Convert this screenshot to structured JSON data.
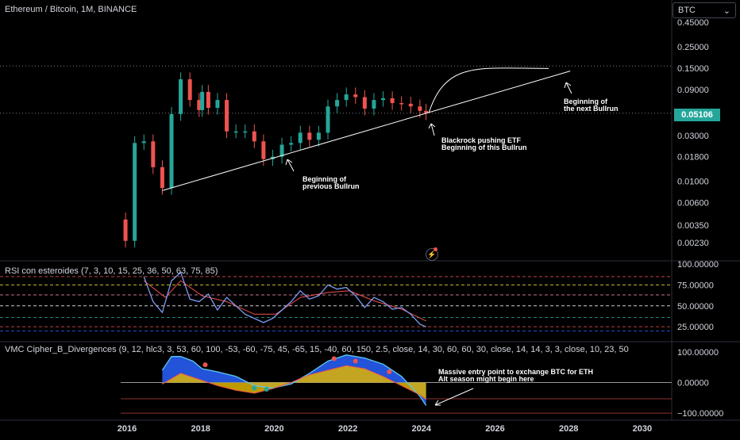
{
  "header": {
    "symbol_title": "Ethereum / Bitcoin, 1M, BINANCE",
    "currency_button": "BTC",
    "currency_chevron": "⌄"
  },
  "last_price": "0.05106",
  "colors": {
    "up": "#26a69a",
    "down": "#ef5350",
    "background": "#000000",
    "grid": "#1e222d",
    "text": "#d1d4dc",
    "rsi_line": "#7e9cf3",
    "rsi_signal": "#ef5350",
    "wave": "#5bc8f0",
    "money_flow": "#2962ff"
  },
  "panes": {
    "rsi_title": "RSI con esteroides (7, 3, 10, 15, 25, 36, 50, 63, 75, 85)",
    "vmc_title": "VMC Cipher_B_Divergences (9, 12, hlc3, 3, 53, 60, 100, -53, -60, -75, 45, -65, 15, -40, 60, 150, 2.5, close, 14, 30, 60, 60, 30, close, 14, 14, 3, 3, close, 10, 23, 50"
  },
  "annotations": {
    "prev_1": "Beginning of",
    "prev_2": "previous Bullrun",
    "etf_1": "Blackrock pushing ETF",
    "etf_2": "Beginning of this Bullrun",
    "next_1": "Beginning of",
    "next_2": "the next Bullrun",
    "entry_1": "Massive entry point to exchange BTC for ETH",
    "entry_2": "Alt season might begin here"
  },
  "chart_data": [
    {
      "type": "candlestick",
      "title": "Ethereum / Bitcoin, 1M, BINANCE",
      "scale": "log",
      "y_tick_labels": [
        "0.45000",
        "0.25000",
        "0.15000",
        "0.09000",
        "0.05106",
        "0.03000",
        "0.01800",
        "0.01000",
        "0.00600",
        "0.00350",
        "0.00230"
      ],
      "x_tick_labels": [
        "2016",
        "2018",
        "2020",
        "2022",
        "2024",
        "2026",
        "2028",
        "2030"
      ],
      "series_close": [
        {
          "date": "2015-09",
          "close": 0.004
        },
        {
          "date": "2015-12",
          "close": 0.0024
        },
        {
          "date": "2016-03",
          "close": 0.025
        },
        {
          "date": "2016-06",
          "close": 0.026
        },
        {
          "date": "2016-09",
          "close": 0.014
        },
        {
          "date": "2016-12",
          "close": 0.0085
        },
        {
          "date": "2017-03",
          "close": 0.05
        },
        {
          "date": "2017-06",
          "close": 0.115
        },
        {
          "date": "2017-09",
          "close": 0.07
        },
        {
          "date": "2017-12",
          "close": 0.055
        },
        {
          "date": "2018-01",
          "close": 0.085
        },
        {
          "date": "2018-03",
          "close": 0.058
        },
        {
          "date": "2018-06",
          "close": 0.07
        },
        {
          "date": "2018-09",
          "close": 0.033
        },
        {
          "date": "2018-12",
          "close": 0.033
        },
        {
          "date": "2019-03",
          "close": 0.033
        },
        {
          "date": "2019-06",
          "close": 0.026
        },
        {
          "date": "2019-09",
          "close": 0.017
        },
        {
          "date": "2019-12",
          "close": 0.018
        },
        {
          "date": "2020-03",
          "close": 0.024
        },
        {
          "date": "2020-06",
          "close": 0.025
        },
        {
          "date": "2020-09",
          "close": 0.032
        },
        {
          "date": "2020-12",
          "close": 0.027
        },
        {
          "date": "2021-03",
          "close": 0.032
        },
        {
          "date": "2021-06",
          "close": 0.06
        },
        {
          "date": "2021-09",
          "close": 0.07
        },
        {
          "date": "2021-12",
          "close": 0.08
        },
        {
          "date": "2022-03",
          "close": 0.075
        },
        {
          "date": "2022-06",
          "close": 0.057
        },
        {
          "date": "2022-09",
          "close": 0.07
        },
        {
          "date": "2022-12",
          "close": 0.073
        },
        {
          "date": "2023-03",
          "close": 0.065
        },
        {
          "date": "2023-06",
          "close": 0.064
        },
        {
          "date": "2023-09",
          "close": 0.06
        },
        {
          "date": "2023-12",
          "close": 0.054
        },
        {
          "date": "2024-02",
          "close": 0.051
        }
      ],
      "trendline": {
        "from": {
          "date": "2016-12",
          "value": 0.008
        },
        "to": {
          "date": "2028-01",
          "value": 0.14
        }
      },
      "curve": {
        "from": {
          "date": "2024-06",
          "value": 0.06
        },
        "to": {
          "date": "2027-06",
          "value": 0.149
        }
      },
      "horizontal_levels": [
        0.158,
        0.05106
      ],
      "last_price": 0.05106
    },
    {
      "type": "line",
      "title": "RSI con esteroides (7, 3, 10, 15, 25, 36, 50, 63, 75, 85)",
      "y_tick_labels": [
        "100.00000",
        "75.00000",
        "50.00000",
        "25.00000"
      ],
      "ylim": [
        10,
        100
      ],
      "levels": [
        85,
        75,
        63,
        50,
        36,
        25
      ],
      "series": [
        {
          "values": [
            {
              "date": "2016-06",
              "value": 85
            },
            {
              "date": "2016-09",
              "value": 55
            },
            {
              "date": "2016-12",
              "value": 42
            },
            {
              "date": "2017-03",
              "value": 80
            },
            {
              "date": "2017-06",
              "value": 90
            },
            {
              "date": "2017-09",
              "value": 58
            },
            {
              "date": "2017-12",
              "value": 55
            },
            {
              "date": "2018-03",
              "value": 64
            },
            {
              "date": "2018-06",
              "value": 45
            },
            {
              "date": "2018-09",
              "value": 60
            },
            {
              "date": "2018-12",
              "value": 50
            },
            {
              "date": "2019-03",
              "value": 40
            },
            {
              "date": "2019-06",
              "value": 35
            },
            {
              "date": "2019-09",
              "value": 30
            },
            {
              "date": "2019-12",
              "value": 35
            },
            {
              "date": "2020-03",
              "value": 45
            },
            {
              "date": "2020-06",
              "value": 55
            },
            {
              "date": "2020-09",
              "value": 68
            },
            {
              "date": "2020-12",
              "value": 58
            },
            {
              "date": "2021-03",
              "value": 62
            },
            {
              "date": "2021-06",
              "value": 75
            },
            {
              "date": "2021-09",
              "value": 70
            },
            {
              "date": "2021-12",
              "value": 72
            },
            {
              "date": "2022-03",
              "value": 62
            },
            {
              "date": "2022-06",
              "value": 48
            },
            {
              "date": "2022-09",
              "value": 60
            },
            {
              "date": "2022-12",
              "value": 55
            },
            {
              "date": "2023-03",
              "value": 46
            },
            {
              "date": "2023-06",
              "value": 48
            },
            {
              "date": "2023-09",
              "value": 40
            },
            {
              "date": "2023-12",
              "value": 28
            },
            {
              "date": "2024-02",
              "value": 25
            }
          ]
        },
        {
          "values": [
            {
              "date": "2016-06",
              "value": 80
            },
            {
              "date": "2017-01",
              "value": 60
            },
            {
              "date": "2017-06",
              "value": 80
            },
            {
              "date": "2018-01",
              "value": 62
            },
            {
              "date": "2018-09",
              "value": 55
            },
            {
              "date": "2019-06",
              "value": 40
            },
            {
              "date": "2020-01",
              "value": 40
            },
            {
              "date": "2020-09",
              "value": 60
            },
            {
              "date": "2021-06",
              "value": 66
            },
            {
              "date": "2022-01",
              "value": 68
            },
            {
              "date": "2022-09",
              "value": 56
            },
            {
              "date": "2023-06",
              "value": 46
            },
            {
              "date": "2024-02",
              "value": 32
            }
          ]
        }
      ]
    },
    {
      "type": "area",
      "title": "VMC Cipher_B_Divergences (9, 12, hlc3, 3, 53, 60, 100, -53, -60, -75, 45, -65, 15, -40, 60, 150, 2.5, close, 14, 30, 60, 60, 30, close, 14, 14, 3, 3, close, 10, 23, 50",
      "y_tick_labels": [
        "100.00000",
        "0.00000",
        "−100.00000"
      ],
      "ylim": [
        -110,
        110
      ],
      "levels": [
        0,
        -53,
        -100
      ],
      "series": [
        {
          "values": [
            {
              "date": "2016-12",
              "value": 40
            },
            {
              "date": "2017-03",
              "value": 85
            },
            {
              "date": "2017-06",
              "value": 85
            },
            {
              "date": "2017-10",
              "value": 70
            },
            {
              "date": "2018-01",
              "value": 45
            },
            {
              "date": "2018-06",
              "value": 35
            },
            {
              "date": "2018-12",
              "value": 20
            },
            {
              "date": "2019-06",
              "value": -10
            },
            {
              "date": "2019-12",
              "value": -18
            },
            {
              "date": "2020-06",
              "value": -5
            },
            {
              "date": "2020-12",
              "value": 30
            },
            {
              "date": "2021-06",
              "value": 70
            },
            {
              "date": "2021-12",
              "value": 90
            },
            {
              "date": "2022-06",
              "value": 80
            },
            {
              "date": "2022-12",
              "value": 60
            },
            {
              "date": "2023-06",
              "value": 20
            },
            {
              "date": "2023-12",
              "value": -45
            },
            {
              "date": "2024-02",
              "value": -75
            }
          ]
        },
        {
          "values": [
            {
              "date": "2016-12",
              "value": -5
            },
            {
              "date": "2017-06",
              "value": 30
            },
            {
              "date": "2017-12",
              "value": 10
            },
            {
              "date": "2018-06",
              "value": -10
            },
            {
              "date": "2018-12",
              "value": -25
            },
            {
              "date": "2019-06",
              "value": -35
            },
            {
              "date": "2019-12",
              "value": -20
            },
            {
              "date": "2020-06",
              "value": 0
            },
            {
              "date": "2020-12",
              "value": 25
            },
            {
              "date": "2021-06",
              "value": 40
            },
            {
              "date": "2021-12",
              "value": 55
            },
            {
              "date": "2022-06",
              "value": 45
            },
            {
              "date": "2022-12",
              "value": 20
            },
            {
              "date": "2023-06",
              "value": -10
            },
            {
              "date": "2023-12",
              "value": -40
            },
            {
              "date": "2024-02",
              "value": -55
            }
          ]
        }
      ]
    }
  ]
}
